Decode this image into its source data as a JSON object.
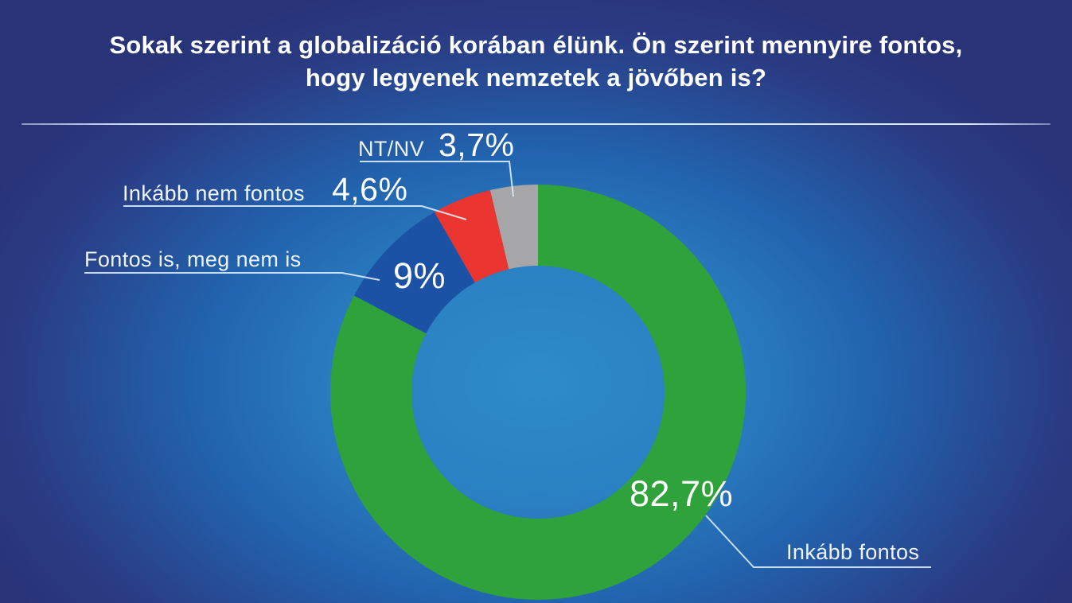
{
  "title": {
    "line1": "Sokak szerint a globalizáció korában élünk. Ön szerint mennyire fontos,",
    "line2": "hogy legyenek nemzetek a jövőben is?"
  },
  "chart_data": {
    "type": "pie",
    "subtype": "donut",
    "title": "Sokak szerint a globalizáció korában élünk. Ön szerint mennyire fontos, hogy legyenek nemzetek a jövőben is?",
    "direction": "clockwise",
    "start_angle": "12-oclock",
    "legend_position": "callout-labels",
    "slices": [
      {
        "id": "inkabb-fontos",
        "label": "Inkább fontos",
        "value": 82.7,
        "display": "82,7%",
        "color": "#2FA23B"
      },
      {
        "id": "fontos-is-meg-nem-is",
        "label": "Fontos is, meg nem is",
        "value": 9,
        "display": "9%",
        "color": "#1C52A5"
      },
      {
        "id": "inkabb-nem-fontos",
        "label": "Inkább nem fontos",
        "value": 4.6,
        "display": "4,6%",
        "color": "#EA3530"
      },
      {
        "id": "nt-nv",
        "label": "NT/NV",
        "value": 3.7,
        "display": "3,7%",
        "color": "#A6A6A8"
      }
    ]
  },
  "colors": {
    "background_center": "#2E8BC9",
    "background_edge": "#293377",
    "title_text": "#FFFFFF",
    "label_text": "#EEF4FB",
    "leader_line": "#DCEBF7"
  }
}
